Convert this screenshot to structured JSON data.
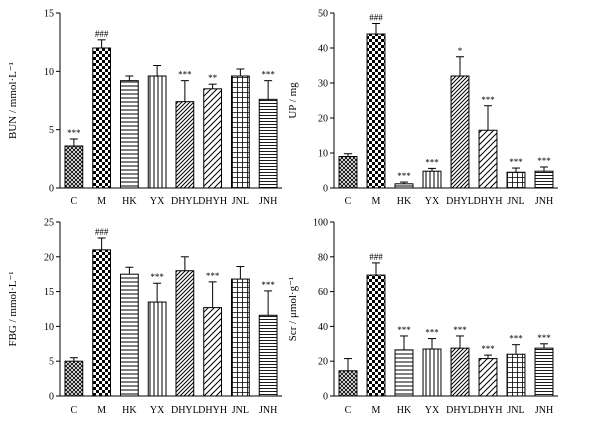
{
  "chart_data": [
    {
      "type": "bar",
      "ylabel": "BUN / mmol·L⁻¹",
      "categories": [
        "C",
        "M",
        "HK",
        "YX",
        "DHYL",
        "DHYH",
        "JNL",
        "JNH"
      ],
      "values": [
        3.6,
        12.0,
        9.2,
        9.6,
        7.4,
        8.5,
        9.6,
        7.6
      ],
      "errors": [
        0.6,
        0.7,
        0.4,
        0.9,
        1.8,
        0.4,
        0.6,
        1.6
      ],
      "annotations": [
        "***",
        "###",
        "",
        "",
        "***",
        "**",
        "",
        "***"
      ],
      "ylim": [
        0,
        15
      ],
      "yticks": [
        0,
        5,
        10,
        15
      ]
    },
    {
      "type": "bar",
      "ylabel": "UP / mg",
      "categories": [
        "C",
        "M",
        "HK",
        "YX",
        "DHYL",
        "DHYH",
        "JNL",
        "JNH"
      ],
      "values": [
        9.0,
        44.0,
        1.2,
        4.8,
        32.0,
        16.5,
        4.5,
        4.8
      ],
      "errors": [
        0.8,
        3.0,
        0.5,
        0.8,
        5.5,
        7.0,
        1.2,
        1.2
      ],
      "annotations": [
        "",
        "###",
        "***",
        "***",
        "*",
        "***",
        "***",
        "***"
      ],
      "ylim": [
        0,
        50
      ],
      "yticks": [
        0,
        10,
        20,
        30,
        40,
        50
      ]
    },
    {
      "type": "bar",
      "ylabel": "FBG / mmol·L⁻¹",
      "categories": [
        "C",
        "M",
        "HK",
        "YX",
        "DHYL",
        "DHYH",
        "JNL",
        "JNH"
      ],
      "values": [
        5.0,
        21.0,
        17.5,
        13.5,
        18.0,
        12.7,
        16.8,
        11.6
      ],
      "errors": [
        0.5,
        1.7,
        1.0,
        2.7,
        2.0,
        3.7,
        1.8,
        3.5
      ],
      "annotations": [
        "",
        "###",
        "",
        "***",
        "",
        "***",
        "",
        "***"
      ],
      "ylim": [
        0,
        25
      ],
      "yticks": [
        0,
        5,
        10,
        15,
        20,
        25
      ]
    },
    {
      "type": "bar",
      "ylabel": "Scr / μmol·g⁻¹",
      "categories": [
        "C",
        "M",
        "HK",
        "YX",
        "DHYL",
        "DHYH",
        "JNL",
        "JNH"
      ],
      "values": [
        14.5,
        69.5,
        26.5,
        27.0,
        27.5,
        21.5,
        24.0,
        27.5
      ],
      "errors": [
        7.0,
        7.0,
        8.0,
        6.0,
        7.0,
        2.0,
        5.5,
        2.5
      ],
      "annotations": [
        "",
        "###",
        "***",
        "***",
        "***",
        "***",
        "***",
        "***"
      ],
      "ylim": [
        0,
        100
      ],
      "yticks": [
        0,
        20,
        40,
        60,
        80,
        100
      ]
    }
  ]
}
